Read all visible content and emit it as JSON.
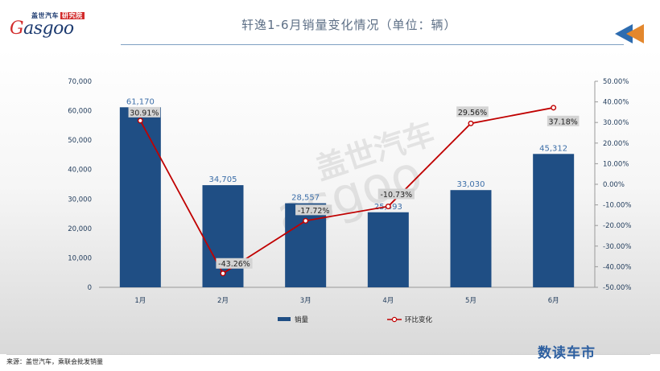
{
  "header": {
    "logo_cn": "盖世汽车",
    "logo_cn_tag": "研究院",
    "logo_en_g": "G",
    "logo_en_rest": "asgoo",
    "title": "轩逸1-6月销量变化情况（单位：辆）"
  },
  "watermark": {
    "cn": "盖世汽车",
    "en": "asgoo"
  },
  "footer": {
    "source": "来源：盖世汽车，乘联会批发销量",
    "brand": "数读车市"
  },
  "colors": {
    "bar": "#1f4e84",
    "line": "#c00000",
    "text": "#1f3a5a",
    "bar_label": "#3c6ea8",
    "pct_label_bg": "#d4d4d4"
  },
  "chart_data": {
    "type": "bar",
    "title": "轩逸1-6月销量变化情况（单位：辆）",
    "categories": [
      "1月",
      "2月",
      "3月",
      "4月",
      "5月",
      "6月"
    ],
    "series": [
      {
        "name": "销量",
        "type": "bar",
        "axis": "left",
        "values": [
          61170,
          34705,
          28557,
          25493,
          33030,
          45312
        ],
        "labels": [
          "61,170",
          "34,705",
          "28,557",
          "25,493",
          "33,030",
          "45,312"
        ]
      },
      {
        "name": "环比变化",
        "type": "line",
        "axis": "right",
        "values": [
          30.91,
          -43.26,
          -17.72,
          -10.73,
          29.56,
          37.18
        ],
        "labels": [
          "30.91%",
          "-43.26%",
          "-17.72%",
          "-10.73%",
          "29.56%",
          "37.18%"
        ]
      }
    ],
    "y_left": {
      "min": 0,
      "max": 70000,
      "ticks": [
        0,
        10000,
        20000,
        30000,
        40000,
        50000,
        60000,
        70000
      ],
      "tick_labels": [
        "0",
        "10,000",
        "20,000",
        "30,000",
        "40,000",
        "50,000",
        "60,000",
        "70,000"
      ]
    },
    "y_right": {
      "min": -50,
      "max": 50,
      "ticks": [
        -50,
        -40,
        -30,
        -20,
        -10,
        0,
        10,
        20,
        30,
        40,
        50
      ],
      "tick_labels": [
        "-50.00%",
        "-40.00%",
        "-30.00%",
        "-20.00%",
        "-10.00%",
        "0.00%",
        "10.00%",
        "20.00%",
        "30.00%",
        "40.00%",
        "50.00%"
      ]
    },
    "legend": [
      "销量",
      "环比变化"
    ],
    "legend_position": "bottom",
    "grid": false
  }
}
